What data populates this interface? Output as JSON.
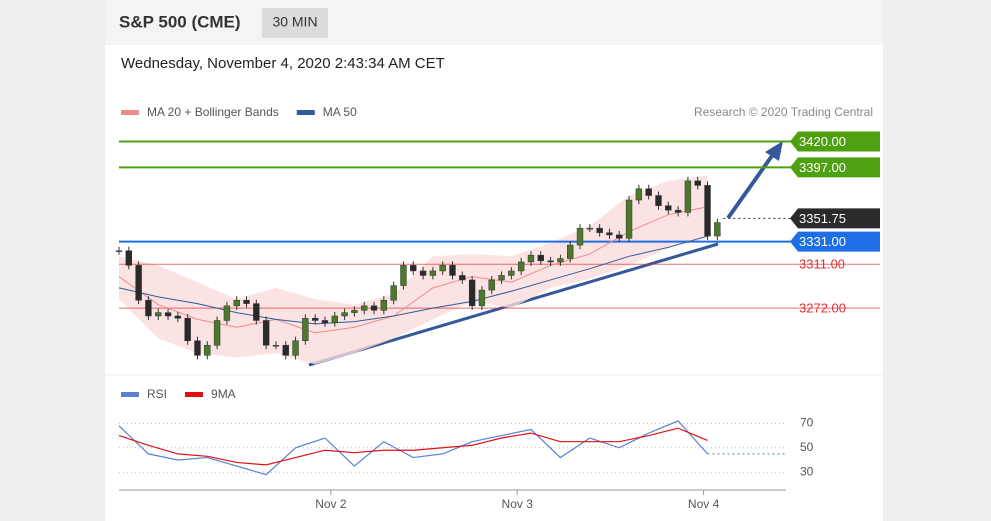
{
  "chart_data": {
    "type": "candlestick",
    "title": "S&P 500 (CME)",
    "interval": "30 MIN",
    "timestamp": "Wednesday, November 4, 2020 2:43:34 AM CET",
    "credit": "Research © 2020 Trading Central",
    "up_color": "#4a7a2a",
    "down_color": "#2a2a2a",
    "close": [
      3323,
      3310,
      3279,
      3265,
      3268,
      3265,
      3263,
      3243,
      3230,
      3239,
      3261,
      3274,
      3279,
      3276,
      3261,
      3239,
      3239,
      3230,
      3243,
      3263,
      3261,
      3259,
      3265,
      3268,
      3270,
      3274,
      3270,
      3279,
      3292,
      3310,
      3305,
      3301,
      3305,
      3310,
      3301,
      3297,
      3274,
      3288,
      3297,
      3301,
      3305,
      3313,
      3319,
      3314,
      3313,
      3316,
      3328,
      3343,
      3343,
      3339,
      3337,
      3334,
      3368,
      3378,
      3372,
      3363,
      3359,
      3357,
      3385,
      3381,
      3336,
      3348
    ],
    "xlim": [
      0,
      68
    ],
    "xticks": [
      {
        "value": 21.6,
        "label": "Nov 2"
      },
      {
        "value": 40.6,
        "label": "Nov 3"
      },
      {
        "value": 59.6,
        "label": "Nov 4"
      }
    ],
    "ylim": [
      3217,
      3432
    ],
    "ma_x": [
      0,
      4,
      8,
      12,
      16,
      20,
      24,
      28,
      32,
      36,
      40,
      44,
      48,
      52,
      56,
      60
    ],
    "series": [
      {
        "name": "MA 20 + Bollinger Bands",
        "color": "#f08a8a",
        "values": [
          3300,
          3275,
          3262,
          3255,
          3262,
          3250,
          3255,
          3265,
          3290,
          3300,
          3295,
          3310,
          3320,
          3340,
          3355,
          3362
        ],
        "upper": [
          3318,
          3310,
          3295,
          3280,
          3290,
          3280,
          3275,
          3285,
          3318,
          3320,
          3318,
          3330,
          3345,
          3372,
          3385,
          3390
        ],
        "lower": [
          3280,
          3245,
          3232,
          3228,
          3232,
          3222,
          3232,
          3245,
          3262,
          3278,
          3272,
          3290,
          3298,
          3310,
          3325,
          3334
        ]
      },
      {
        "name": "MA 50",
        "color": "#2e5b9a",
        "values": [
          3290,
          3282,
          3276,
          3268,
          3262,
          3258,
          3260,
          3265,
          3272,
          3278,
          3287,
          3297,
          3307,
          3318,
          3326,
          3336
        ]
      }
    ],
    "levels": [
      {
        "value": 3420,
        "label": "3420.00",
        "color": "#4fa010",
        "boxed": true,
        "line": "solid"
      },
      {
        "value": 3397,
        "label": "3397.00",
        "color": "#4fa010",
        "boxed": true,
        "line": "solid"
      },
      {
        "value": 3351.75,
        "label": "3351.75",
        "color": "#2b2b2b",
        "boxed": true,
        "line": "dotted"
      },
      {
        "value": 3331,
        "label": "3331.00",
        "color": "#1e6ee6",
        "boxed": true,
        "line": "solid"
      },
      {
        "value": 3311,
        "label": "3311.00",
        "color": "#e03030",
        "boxed": false,
        "line": "solid"
      },
      {
        "value": 3272,
        "label": "3272.00",
        "color": "#e03030",
        "boxed": false,
        "line": "solid"
      }
    ],
    "rsi": {
      "x": [
        0,
        3,
        6,
        9,
        12,
        15,
        18,
        21,
        24,
        27,
        30,
        33,
        36,
        39,
        42,
        45,
        48,
        51,
        54,
        57,
        60
      ],
      "ylim": [
        22,
        85
      ],
      "yticks": [
        70,
        50,
        30
      ],
      "series": [
        {
          "name": "RSI",
          "color": "#5b7fd6",
          "values": [
            68,
            45,
            40,
            42,
            35,
            28,
            50,
            58,
            35,
            55,
            42,
            45,
            55,
            60,
            65,
            42,
            58,
            50,
            62,
            72,
            45
          ]
        },
        {
          "name": "9MA",
          "color": "#e01010",
          "values": [
            60,
            52,
            45,
            43,
            38,
            36,
            42,
            48,
            46,
            48,
            48,
            50,
            52,
            58,
            62,
            55,
            55,
            55,
            60,
            66,
            56
          ]
        }
      ]
    }
  }
}
